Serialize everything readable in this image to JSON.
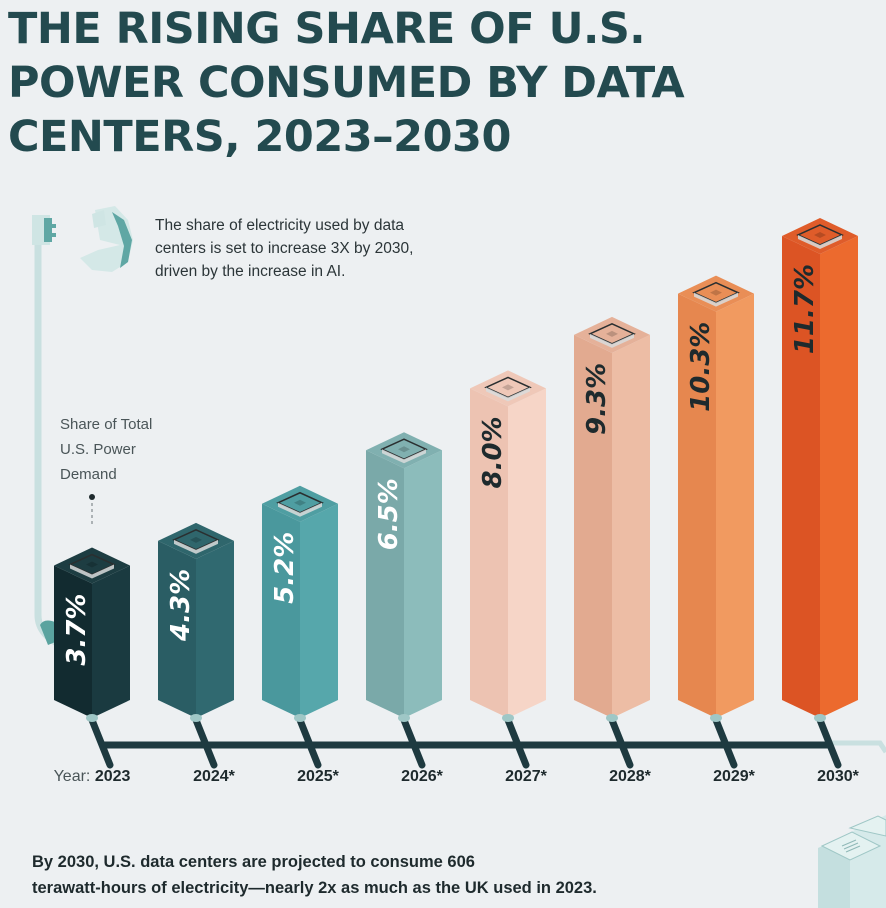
{
  "title_lines": [
    "THE RISING SHARE OF U.S.",
    "POWER CONSUMED BY DATA",
    "CENTERS, 2023–2030"
  ],
  "subtitle_lines": [
    "The share of electricity used by data",
    "centers is set to increase 3X by 2030,",
    "driven by the increase in AI."
  ],
  "share_label_lines": [
    "Share of Total",
    "U.S. Power",
    "Demand"
  ],
  "year_prefix": "Year:",
  "footer_lines": [
    "By 2030, U.S. data centers are projected to consume 606",
    "terawatt-hours of electricity—nearly 2x as much as the UK used in 2023."
  ],
  "icons": [
    "power-plug-icon",
    "pie-chart-icon",
    "server-rack-icon",
    "cpu-chip-icon"
  ],
  "chart_data": {
    "type": "bar",
    "title": "The Rising Share of U.S. Power Consumed by Data Centers, 2023–2030",
    "xlabel": "Year",
    "ylabel": "Share of Total U.S. Power Demand",
    "categories": [
      "2023",
      "2024*",
      "2025*",
      "2026*",
      "2027*",
      "2028*",
      "2029*",
      "2030*"
    ],
    "values": [
      3.7,
      4.3,
      5.2,
      6.5,
      8.0,
      9.3,
      10.3,
      11.7
    ],
    "value_labels": [
      "3.7%",
      "4.3%",
      "5.2%",
      "6.5%",
      "8.0%",
      "9.3%",
      "10.3%",
      "11.7%"
    ],
    "unit": "%",
    "grid": false,
    "legend": "none",
    "colors": [
      {
        "left": "#122b30",
        "right": "#1a3a40",
        "top": "#1d3d42",
        "text": "#ffffff"
      },
      {
        "left": "#2a5d64",
        "right": "#306970",
        "top": "#2f666c",
        "text": "#ffffff"
      },
      {
        "left": "#4a989d",
        "right": "#56a7ab",
        "top": "#4f9ea2",
        "text": "#ffffff"
      },
      {
        "left": "#7aa9a9",
        "right": "#8cbcbb",
        "top": "#80b0b0",
        "text": "#ffffff"
      },
      {
        "left": "#edc3b2",
        "right": "#f6d5c7",
        "top": "#efc8b8",
        "text": "#1e2a2d"
      },
      {
        "left": "#e2aa90",
        "right": "#edbda5",
        "top": "#e5b199",
        "text": "#1e2a2d"
      },
      {
        "left": "#e6874f",
        "right": "#f19a60",
        "top": "#e98e56",
        "text": "#1e2a2d"
      },
      {
        "left": "#dc5424",
        "right": "#ec6a2e",
        "top": "#df5c2a",
        "text": "#1e2a2d"
      }
    ],
    "timeline_color": "#1e3a40"
  }
}
